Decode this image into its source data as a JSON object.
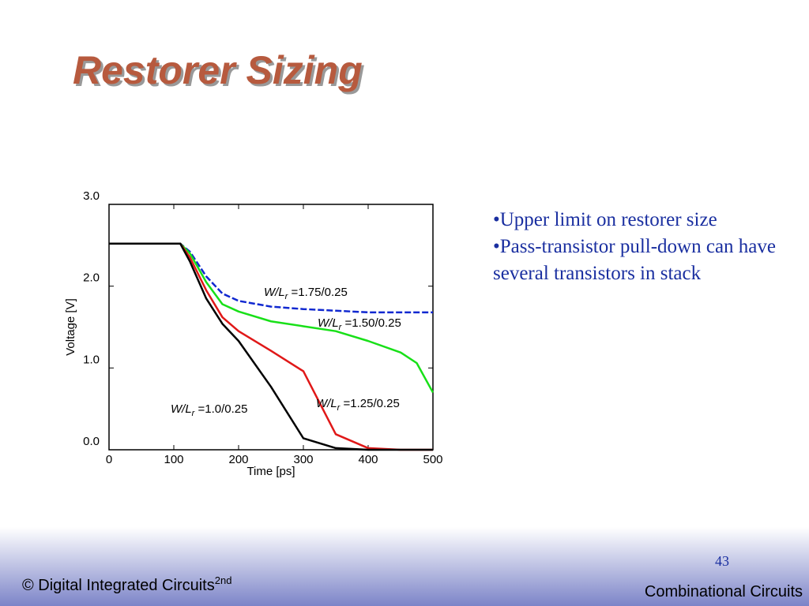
{
  "slide": {
    "title": "Restorer Sizing",
    "bullets": [
      "•Upper limit on restorer size",
      "•Pass-transistor pull-down can have several transistors in stack"
    ],
    "footer": {
      "left": "© Digital Integrated Circuits",
      "left_sup": "2nd",
      "page": "43",
      "right": "Combinational Circuits"
    }
  },
  "chart_data": {
    "type": "line",
    "x_label": "Time [ps]",
    "y_label": "Voltage  [V]",
    "xlim": [
      0,
      500
    ],
    "ylim": [
      0,
      3
    ],
    "xticks": [
      0,
      100,
      200,
      300,
      400,
      500
    ],
    "yticks": [
      {
        "value": 0,
        "label": "0.0"
      },
      {
        "value": 1,
        "label": "1.0"
      },
      {
        "value": 2,
        "label": "2.0"
      },
      {
        "value": 3,
        "label": "3.0"
      }
    ],
    "x": [
      0,
      50,
      100,
      110,
      125,
      150,
      175,
      200,
      250,
      300,
      350,
      400,
      450,
      475,
      500
    ],
    "series": [
      {
        "name": {
          "var": "W/L",
          "sub": "r",
          "value": " =1.75/0.25"
        },
        "color": "#1028d0",
        "dashed": true,
        "values": [
          2.52,
          2.52,
          2.52,
          2.52,
          2.42,
          2.12,
          1.91,
          1.82,
          1.75,
          1.72,
          1.7,
          1.68,
          1.68,
          1.68,
          1.68
        ]
      },
      {
        "name": {
          "var": "W/L",
          "sub": "r",
          "value": " =1.50/0.25"
        },
        "color": "#18e018",
        "values": [
          2.52,
          2.52,
          2.52,
          2.52,
          2.4,
          2.05,
          1.78,
          1.69,
          1.57,
          1.51,
          1.45,
          1.33,
          1.19,
          1.06,
          0.7
        ]
      },
      {
        "name": {
          "var": "W/L",
          "sub": "r",
          "value": " =1.25/0.25"
        },
        "color": "#e01818",
        "values": [
          2.52,
          2.52,
          2.52,
          2.52,
          2.35,
          1.95,
          1.62,
          1.45,
          1.21,
          0.96,
          0.19,
          0.02,
          0,
          0,
          0
        ]
      },
      {
        "name": {
          "var": "W/L",
          "sub": "r",
          "value": " =1.0/0.25"
        },
        "color": "#000000",
        "values": [
          2.52,
          2.52,
          2.52,
          2.52,
          2.3,
          1.85,
          1.54,
          1.33,
          0.77,
          0.14,
          0.02,
          0,
          0,
          0,
          0
        ]
      }
    ]
  }
}
